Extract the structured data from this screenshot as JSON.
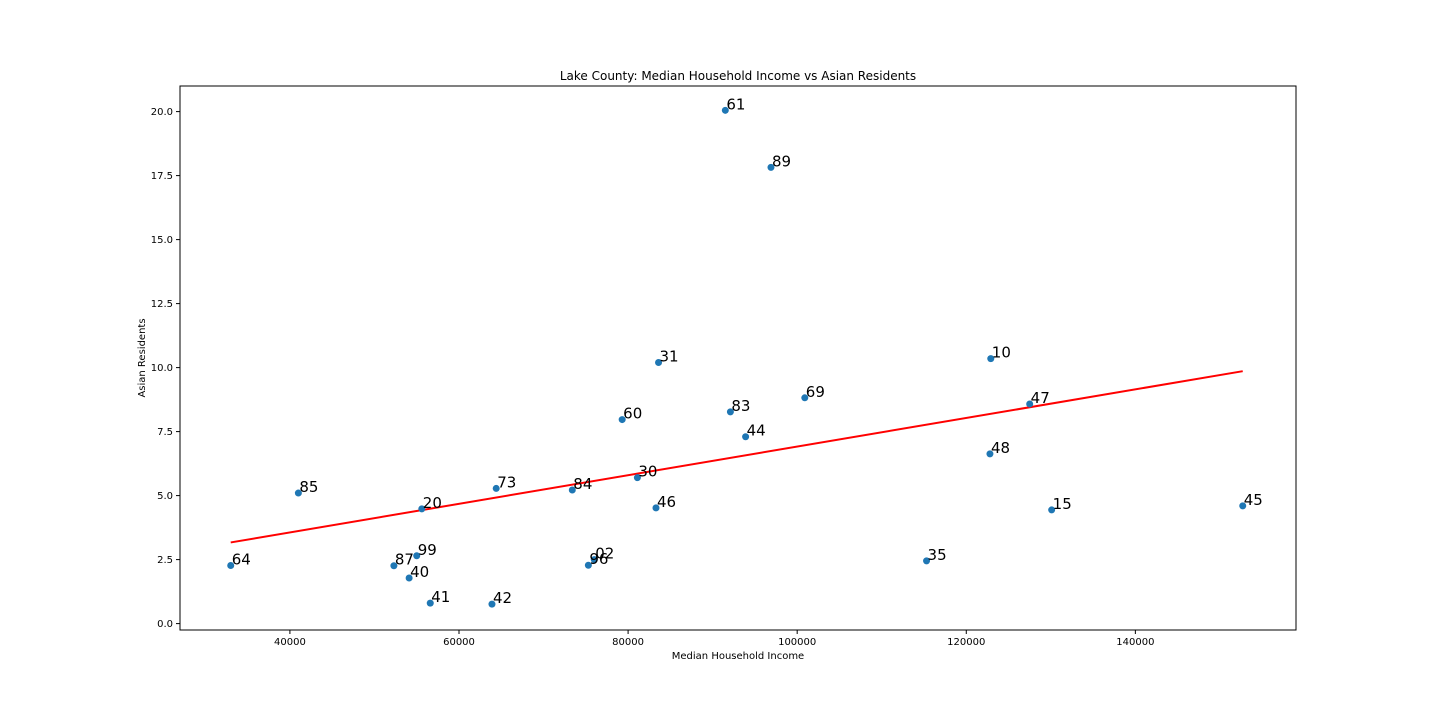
{
  "chart_data": {
    "type": "scatter",
    "title": "Lake County: Median Household Income vs Asian Residents",
    "xlabel": "Median Household Income",
    "ylabel": "Asian Residents",
    "xlim": [
      27000,
      159000
    ],
    "ylim": [
      -0.25,
      21.0
    ],
    "xticks": [
      40000,
      60000,
      80000,
      100000,
      120000,
      140000
    ],
    "yticks": [
      0.0,
      2.5,
      5.0,
      7.5,
      10.0,
      12.5,
      15.0,
      17.5,
      20.0
    ],
    "xtick_labels": [
      "40000",
      "60000",
      "80000",
      "100000",
      "120000",
      "140000"
    ],
    "ytick_labels": [
      "0.0",
      "2.5",
      "5.0",
      "7.5",
      "10.0",
      "12.5",
      "15.0",
      "17.5",
      "20.0"
    ],
    "grid": false,
    "point_color": "#1f77b4",
    "trend_color": "#ff0000",
    "points": [
      {
        "label": "61",
        "x": 91500,
        "y": 20.05
      },
      {
        "label": "89",
        "x": 96900,
        "y": 17.82
      },
      {
        "label": "31",
        "x": 83600,
        "y": 10.2
      },
      {
        "label": "10",
        "x": 122900,
        "y": 10.35
      },
      {
        "label": "69",
        "x": 100900,
        "y": 8.82
      },
      {
        "label": "47",
        "x": 127500,
        "y": 8.58
      },
      {
        "label": "83",
        "x": 92100,
        "y": 8.27
      },
      {
        "label": "60",
        "x": 79300,
        "y": 7.97
      },
      {
        "label": "44",
        "x": 93900,
        "y": 7.3
      },
      {
        "label": "48",
        "x": 122800,
        "y": 6.63
      },
      {
        "label": "30",
        "x": 81100,
        "y": 5.7
      },
      {
        "label": "73",
        "x": 64400,
        "y": 5.28
      },
      {
        "label": "84",
        "x": 73400,
        "y": 5.22
      },
      {
        "label": "85",
        "x": 41000,
        "y": 5.1
      },
      {
        "label": "46",
        "x": 83300,
        "y": 4.52
      },
      {
        "label": "20",
        "x": 55600,
        "y": 4.48
      },
      {
        "label": "45",
        "x": 152700,
        "y": 4.6
      },
      {
        "label": "15",
        "x": 130100,
        "y": 4.44
      },
      {
        "label": "99",
        "x": 55000,
        "y": 2.65
      },
      {
        "label": "02",
        "x": 76000,
        "y": 2.5
      },
      {
        "label": "35",
        "x": 115300,
        "y": 2.45
      },
      {
        "label": "96",
        "x": 75300,
        "y": 2.28
      },
      {
        "label": "64",
        "x": 33000,
        "y": 2.27
      },
      {
        "label": "87",
        "x": 52300,
        "y": 2.26
      },
      {
        "label": "40",
        "x": 54100,
        "y": 1.78
      },
      {
        "label": "41",
        "x": 56600,
        "y": 0.8
      },
      {
        "label": "42",
        "x": 63900,
        "y": 0.76
      }
    ],
    "trendline": {
      "x": [
        33000,
        152700
      ],
      "y": [
        3.17,
        9.86
      ]
    }
  }
}
